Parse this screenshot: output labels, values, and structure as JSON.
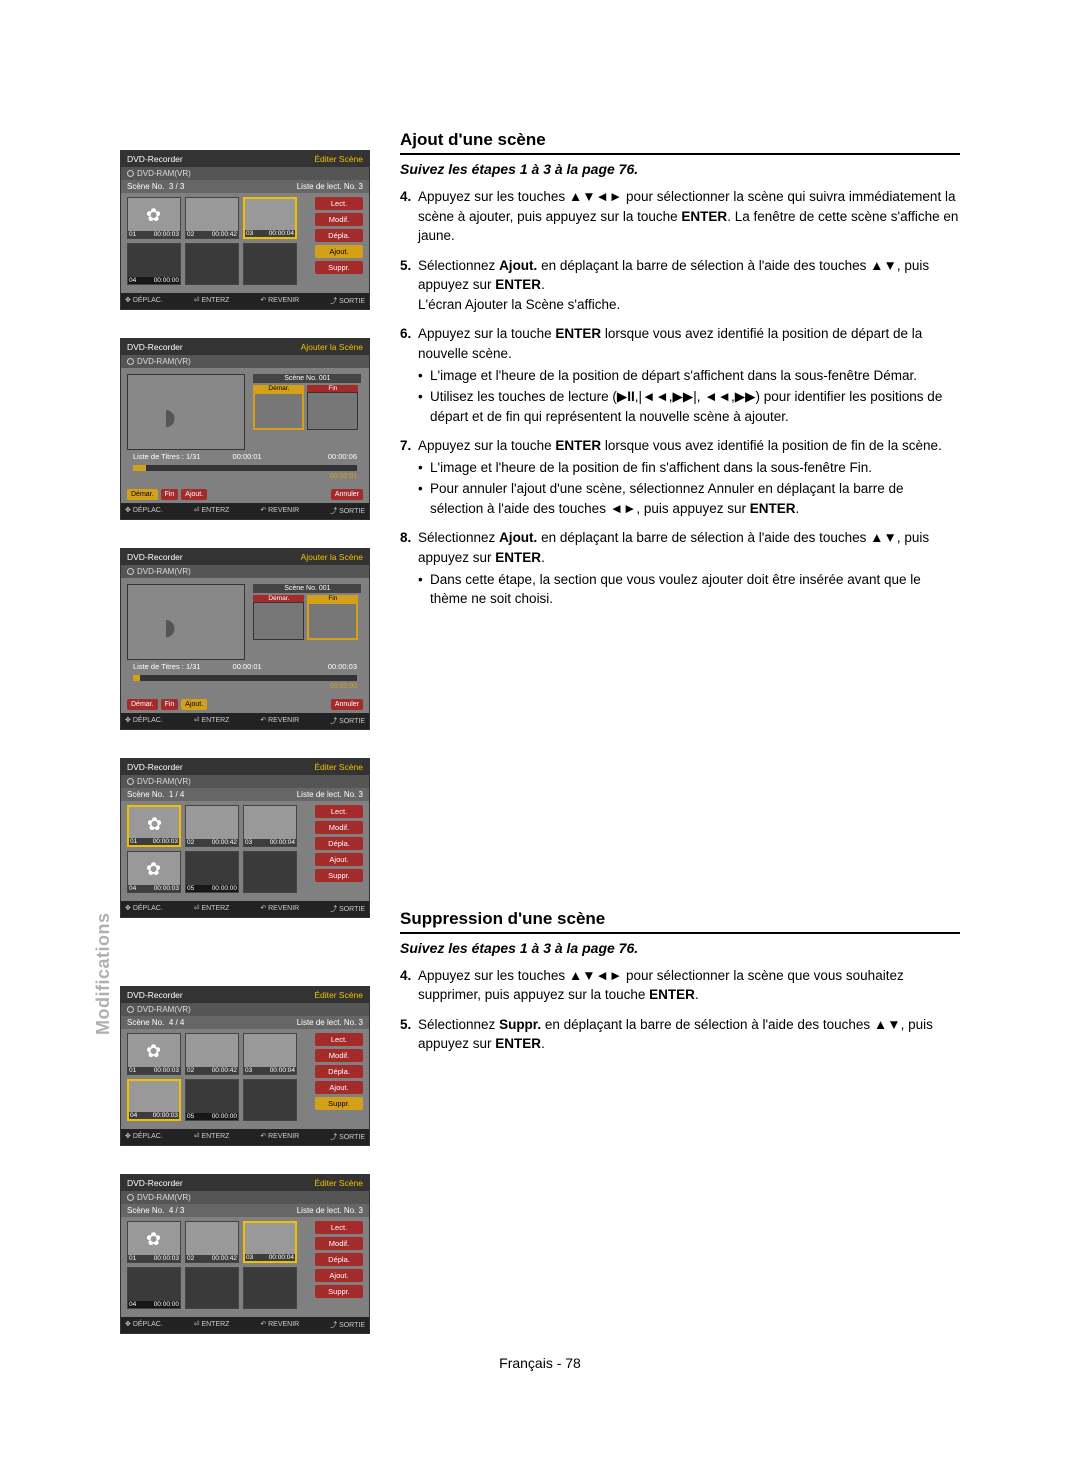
{
  "sideTab": "Modifications",
  "footer": "Français - 78",
  "section1": {
    "title": "Ajout d'une scène",
    "subtitle": "Suivez les étapes 1 à 3 à la page 76.",
    "steps": [
      {
        "n": "4.",
        "html": "Appuyez sur les touches ▲▼◄► pour sélectionner la scène qui suivra immédiatement la scène à ajouter, puis appuyez sur la touche <b>ENTER</b>. La fenêtre de cette scène s'affiche en jaune."
      },
      {
        "n": "5.",
        "html": "Sélectionnez <b>Ajout.</b> en déplaçant la barre de sélection à l'aide des touches ▲▼, puis appuyez sur <b>ENTER</b>.<br>L'écran Ajouter la Scène s'affiche."
      },
      {
        "n": "6.",
        "html": "Appuyez sur la touche <b>ENTER</b> lorsque vous avez identifié la position de départ de la nouvelle scène.",
        "bullets": [
          "L'image et l'heure de la position de départ s'affichent dans la sous-fenêtre Démar.",
          "Utilisez les touches de lecture (▶<b>II</b>,|◄◄,▶▶|, ◄◄,▶▶) pour identifier les positions de départ et de fin qui représentent la nouvelle scène à ajouter."
        ]
      },
      {
        "n": "7.",
        "html": "Appuyez sur la touche <b>ENTER</b> lorsque vous avez identifié la position de fin de la scène.",
        "bullets": [
          "L'image et l'heure de la position de fin s'affichent dans la sous-fenêtre Fin.",
          "Pour annuler l'ajout d'une scène, sélectionnez Annuler en déplaçant la barre de sélection à l'aide des touches ◄►, puis appuyez sur <b>ENTER</b>."
        ]
      },
      {
        "n": "8.",
        "html": "Sélectionnez <b>Ajout.</b> en déplaçant la barre de sélection à l'aide des touches ▲▼, puis appuyez sur <b>ENTER</b>.",
        "bullets": [
          "Dans cette étape, la section que vous voulez ajouter doit être insérée avant que le thème ne soit choisi."
        ]
      }
    ]
  },
  "section2": {
    "title": "Suppression d'une scène",
    "subtitle": "Suivez les étapes 1 à 3 à la page 76.",
    "steps": [
      {
        "n": "4.",
        "html": "Appuyez sur les touches ▲▼◄► pour sélectionner la scène que vous souhaitez supprimer, puis appuyez sur la touche <b>ENTER</b>."
      },
      {
        "n": "5.",
        "html": "Sélectionnez <b>Suppr.</b> en déplaçant la barre de sélection à l'aide des touches ▲▼, puis appuyez sur <b>ENTER</b>."
      }
    ]
  },
  "labels": {
    "recorder": "DVD-Recorder",
    "editScene": "Éditer Scène",
    "addScene": "Ajouter la Scène",
    "disc": "DVD-RAM(VR)",
    "sceneNo": "Scène No.",
    "playlist": "Liste de lect. No. 3",
    "titleList": "Liste de Titres : 1/31",
    "sceneNo001": "Scène No. 001",
    "lect": "Lect.",
    "modif": "Modif.",
    "depla": "Dépla.",
    "ajout": "Ajout.",
    "suppr": "Suppr.",
    "demar": "Démar.",
    "fin": "Fin",
    "annuler": "Annuler",
    "foot_move": "DÉPLAC.",
    "foot_enter": "ENTERZ",
    "foot_return": "REVENIR",
    "foot_exit": "SORTIE",
    "t1": "00:00:03",
    "t2": "00:00:42",
    "t3": "00:00:04",
    "t4": "00:00:00",
    "p33": "3 / 3",
    "p14": "1 / 4",
    "p44": "4 / 4",
    "p43": "4 / 3",
    "ts1": "00:00:01",
    "ts2": "00:00:06",
    "ts3": "00:00:03",
    "tsbar": "00:00:01",
    "tsbar2": "00:00:00"
  }
}
